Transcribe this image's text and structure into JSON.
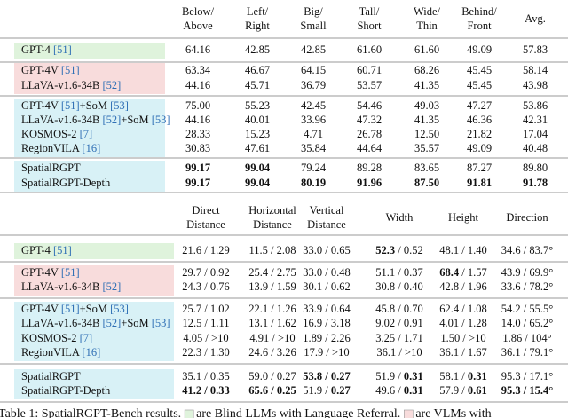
{
  "table1": {
    "headers": [
      [
        "Below/",
        "Above"
      ],
      [
        "Left/",
        "Right"
      ],
      [
        "Big/",
        "Small"
      ],
      [
        "Tall/",
        "Short"
      ],
      [
        "Wide/",
        "Thin"
      ],
      [
        "Behind/",
        "Front"
      ],
      [
        "Avg."
      ]
    ],
    "groups": [
      {
        "color": "#dff3dc",
        "rows": [
          {
            "label": [
              "GPT-4 ",
              "[51]"
            ],
            "cells": [
              "64.16",
              "42.85",
              "42.85",
              "61.60",
              "61.60",
              "49.09",
              "57.83"
            ]
          }
        ]
      },
      {
        "color": "#f8dcdc",
        "rows": [
          {
            "label": [
              "GPT-4V ",
              "[51]"
            ],
            "cells": [
              "63.34",
              "46.67",
              "64.15",
              "60.71",
              "68.26",
              "45.45",
              "58.14"
            ]
          },
          {
            "label": [
              "LLaVA-v1.6-34B ",
              "[52]"
            ],
            "cells": [
              "44.16",
              "45.71",
              "36.79",
              "53.57",
              "41.35",
              "45.45",
              "43.98"
            ]
          }
        ]
      },
      {
        "color": "#d8f1f6",
        "rows": [
          {
            "label": [
              "GPT-4V ",
              "[51]",
              "+SoM ",
              "[53]"
            ],
            "cells": [
              "75.00",
              "55.23",
              "42.45",
              "54.46",
              "49.03",
              "47.27",
              "53.86"
            ]
          },
          {
            "label": [
              "LLaVA-v1.6-34B ",
              "[52]",
              "+SoM ",
              "[53]"
            ],
            "cells": [
              "44.16",
              "40.01",
              "33.96",
              "47.32",
              "41.35",
              "46.36",
              "42.31"
            ]
          },
          {
            "label": [
              "KOSMOS-2 ",
              "[7]"
            ],
            "cells": [
              "28.33",
              "15.23",
              "4.71",
              "26.78",
              "12.50",
              "21.82",
              "17.04"
            ]
          },
          {
            "label": [
              "RegionVILA ",
              "[16]"
            ],
            "cells": [
              "30.83",
              "47.61",
              "35.84",
              "44.64",
              "35.57",
              "49.09",
              "40.48"
            ]
          }
        ]
      },
      {
        "color": "#d8f1f6",
        "rows": [
          {
            "label": [
              "SpatialRGPT"
            ],
            "cells": [
              {
                "text": "99.17",
                "bold": true
              },
              {
                "text": "99.04",
                "bold": true
              },
              "79.24",
              "89.28",
              "83.65",
              "87.27",
              "89.80"
            ]
          },
          {
            "label": [
              "SpatialRGPT-Depth"
            ],
            "cells": [
              {
                "text": "99.17",
                "bold": true
              },
              {
                "text": "99.04",
                "bold": true
              },
              {
                "text": "80.19",
                "bold": true
              },
              {
                "text": "91.96",
                "bold": true
              },
              {
                "text": "87.50",
                "bold": true
              },
              {
                "text": "91.81",
                "bold": true
              },
              {
                "text": "91.78",
                "bold": true
              }
            ]
          }
        ]
      }
    ]
  },
  "table2": {
    "headers": [
      [
        "Direct",
        "Distance"
      ],
      [
        "Horizontal",
        "Distance"
      ],
      [
        "Vertical",
        "Distance"
      ],
      [
        "Width"
      ],
      [
        "Height"
      ],
      [
        "Direction"
      ]
    ],
    "groups": [
      {
        "color": "#dff3dc",
        "rows": [
          {
            "label": [
              "GPT-4 ",
              "[51]"
            ],
            "cells": [
              "21.6 / 1.29",
              "11.5 / 2.08",
              "33.0 / 0.65",
              [
                {
                  "text": "52.3",
                  "bold": true
                },
                " / 0.52"
              ],
              "48.1 / 1.40",
              "34.6 / 83.7°"
            ]
          }
        ]
      },
      {
        "color": "#f8dcdc",
        "rows": [
          {
            "label": [
              "GPT-4V ",
              "[51]"
            ],
            "cells": [
              "29.7 / 0.92",
              "25.4 / 2.75",
              "33.0 / 0.48",
              "51.1 / 0.37",
              [
                {
                  "text": "68.4",
                  "bold": true
                },
                " / 1.57"
              ],
              "43.9 / 69.9°"
            ]
          },
          {
            "label": [
              "LLaVA-v1.6-34B ",
              "[52]"
            ],
            "cells": [
              "24.3 / 0.76",
              "13.9 / 1.59",
              "30.1 / 0.62",
              "30.8 / 0.40",
              "42.8 / 1.96",
              "33.6 / 78.2°"
            ]
          }
        ]
      },
      {
        "color": "#d8f1f6",
        "rows": [
          {
            "label": [
              "GPT-4V ",
              "[51]",
              "+SoM ",
              "[53]"
            ],
            "cells": [
              "25.7 / 1.02",
              "22.1 / 1.26",
              "33.9 / 0.64",
              "45.8 / 0.70",
              "62.4 / 1.08",
              "54.2 / 55.5°"
            ]
          },
          {
            "label": [
              "LLaVA-v1.6-34B ",
              "[52]",
              "+SoM ",
              "[53]"
            ],
            "cells": [
              "12.5 / 1.11",
              "13.1 / 1.62",
              "16.9 / 3.18",
              "9.02 / 0.91",
              "4.01 / 1.28",
              "14.0 / 65.2°"
            ]
          },
          {
            "label": [
              "KOSMOS-2 ",
              "[7]"
            ],
            "cells": [
              "4.05 / >10",
              "4.91 / >10",
              "1.89 / 2.26",
              "3.25 / 1.71",
              "1.50 / >10",
              "1.86 / 104°"
            ]
          },
          {
            "label": [
              "RegionVILA ",
              "[16]"
            ],
            "cells": [
              "22.3 / 1.30",
              "24.6 / 3.26",
              "17.9 / >10",
              "36.1 / >10",
              "36.1 / 1.67",
              "36.1 / 79.1°"
            ]
          }
        ]
      },
      {
        "color": "#d8f1f6",
        "rows": [
          {
            "label": [
              "SpatialRGPT"
            ],
            "cells": [
              "35.1 / 0.35",
              "59.0 / 0.27",
              {
                "text": "53.8 / 0.27",
                "bold": true
              },
              [
                "51.9 / ",
                {
                  "text": "0.31",
                  "bold": true
                }
              ],
              [
                "58.1 / ",
                {
                  "text": "0.31",
                  "bold": true
                }
              ],
              "95.3 / 17.1°"
            ]
          },
          {
            "label": [
              "SpatialRGPT-Depth"
            ],
            "cells": [
              {
                "text": "41.2 / 0.33",
                "bold": true
              },
              {
                "text": "65.6 / 0.25",
                "bold": true
              },
              [
                "51.9 / ",
                {
                  "text": "0.27",
                  "bold": true
                }
              ],
              [
                "49.6 / ",
                {
                  "text": "0.31",
                  "bold": true
                }
              ],
              [
                "57.9 / ",
                {
                  "text": "0.61",
                  "bold": true
                }
              ],
              {
                "text": "95.3 / 15.4°",
                "bold": true
              }
            ]
          }
        ]
      }
    ]
  },
  "caption": [
    "Table 1: SpatialRGPT-Bench results.",
    "are Blind LLMs with Language Referral.",
    "are VLMs with"
  ]
}
